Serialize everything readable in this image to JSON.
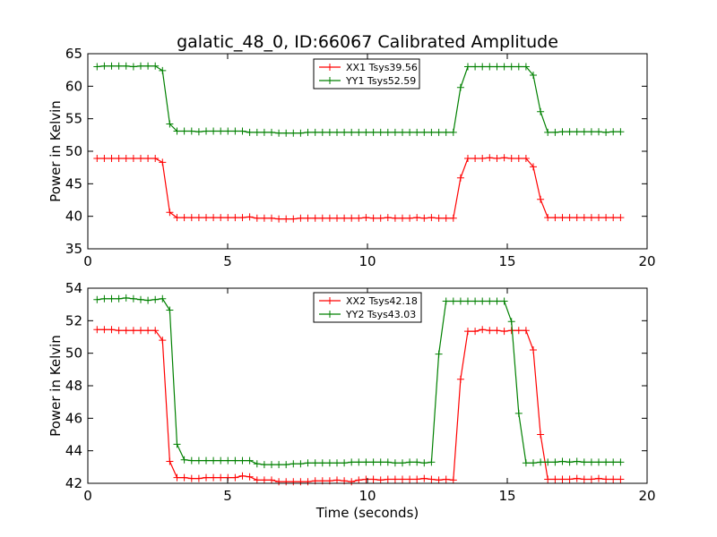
{
  "figure": {
    "title": "galatic_48_0, ID:66067 Calibrated Amplitude"
  },
  "chart_data": [
    {
      "type": "line",
      "title": "galatic_48_0, ID:66067 Calibrated Amplitude",
      "xlabel": "",
      "ylabel": "Power in Kelvin",
      "xlim": [
        0,
        20
      ],
      "ylim": [
        35,
        65
      ],
      "xticks": [
        0,
        5,
        10,
        15,
        20
      ],
      "yticks": [
        35,
        40,
        45,
        50,
        55,
        60,
        65
      ],
      "grid": false,
      "legend_position": "top-center",
      "x": [
        0.33,
        0.59,
        0.85,
        1.11,
        1.37,
        1.63,
        1.89,
        2.15,
        2.41,
        2.67,
        2.93,
        3.19,
        3.45,
        3.71,
        3.97,
        4.23,
        4.49,
        4.75,
        5.01,
        5.27,
        5.53,
        5.79,
        6.05,
        6.31,
        6.57,
        6.83,
        7.09,
        7.35,
        7.61,
        7.87,
        8.13,
        8.39,
        8.65,
        8.91,
        9.17,
        9.43,
        9.69,
        9.95,
        10.21,
        10.47,
        10.73,
        10.99,
        11.25,
        11.51,
        11.77,
        12.03,
        12.29,
        12.55,
        12.81,
        13.07,
        13.33,
        13.59,
        13.85,
        14.11,
        14.37,
        14.63,
        14.89,
        15.15,
        15.41,
        15.67,
        15.93,
        16.19,
        16.45,
        16.71,
        16.97,
        17.23,
        17.49,
        17.75,
        18.01,
        18.27,
        18.53,
        18.79,
        19.05
      ],
      "series": [
        {
          "name": "XX1 Tsys39.56",
          "color": "#ff0000",
          "values": [
            48.9,
            48.9,
            48.9,
            48.9,
            48.9,
            48.9,
            48.9,
            48.9,
            48.9,
            48.3,
            40.6,
            39.8,
            39.8,
            39.8,
            39.8,
            39.8,
            39.8,
            39.8,
            39.8,
            39.8,
            39.8,
            39.9,
            39.7,
            39.7,
            39.7,
            39.6,
            39.6,
            39.6,
            39.7,
            39.7,
            39.7,
            39.7,
            39.7,
            39.7,
            39.7,
            39.7,
            39.7,
            39.8,
            39.7,
            39.7,
            39.8,
            39.7,
            39.7,
            39.7,
            39.8,
            39.7,
            39.8,
            39.7,
            39.7,
            39.7,
            45.9,
            48.9,
            48.9,
            48.9,
            49.0,
            48.9,
            49.0,
            48.9,
            48.9,
            48.9,
            47.6,
            42.6,
            39.8,
            39.8,
            39.8,
            39.8,
            39.8,
            39.8,
            39.8,
            39.8,
            39.8,
            39.8,
            39.8
          ]
        },
        {
          "name": "YY1 Tsys52.59",
          "color": "#008000",
          "values": [
            63.0,
            63.1,
            63.1,
            63.1,
            63.1,
            63.0,
            63.1,
            63.1,
            63.1,
            62.4,
            54.2,
            53.1,
            53.1,
            53.1,
            53.0,
            53.1,
            53.1,
            53.1,
            53.1,
            53.1,
            53.1,
            52.9,
            52.9,
            52.9,
            52.9,
            52.8,
            52.8,
            52.8,
            52.8,
            52.9,
            52.9,
            52.9,
            52.9,
            52.9,
            52.9,
            52.9,
            52.9,
            52.9,
            52.9,
            52.9,
            52.9,
            52.9,
            52.9,
            52.9,
            52.9,
            52.9,
            52.9,
            52.9,
            52.9,
            52.9,
            59.8,
            63.0,
            63.0,
            63.0,
            63.0,
            63.0,
            63.0,
            63.0,
            63.0,
            63.0,
            61.7,
            56.1,
            52.9,
            52.9,
            53.0,
            53.0,
            53.0,
            53.0,
            53.0,
            53.0,
            52.9,
            53.0,
            53.0
          ]
        }
      ]
    },
    {
      "type": "line",
      "title": "",
      "xlabel": "Time (seconds)",
      "ylabel": "Power in Kelvin",
      "xlim": [
        0,
        20
      ],
      "ylim": [
        42,
        54
      ],
      "xticks": [
        0,
        5,
        10,
        15,
        20
      ],
      "yticks": [
        42,
        44,
        46,
        48,
        50,
        52,
        54
      ],
      "grid": false,
      "legend_position": "top-center",
      "x": [
        0.33,
        0.59,
        0.85,
        1.11,
        1.37,
        1.63,
        1.89,
        2.15,
        2.41,
        2.67,
        2.93,
        3.19,
        3.45,
        3.71,
        3.97,
        4.23,
        4.49,
        4.75,
        5.01,
        5.27,
        5.53,
        5.79,
        6.05,
        6.31,
        6.57,
        6.83,
        7.09,
        7.35,
        7.61,
        7.87,
        8.13,
        8.39,
        8.65,
        8.91,
        9.17,
        9.43,
        9.69,
        9.95,
        10.21,
        10.47,
        10.73,
        10.99,
        11.25,
        11.51,
        11.77,
        12.03,
        12.29,
        12.55,
        12.81,
        13.07,
        13.33,
        13.59,
        13.85,
        14.11,
        14.37,
        14.63,
        14.89,
        15.15,
        15.41,
        15.67,
        15.93,
        16.19,
        16.45,
        16.71,
        16.97,
        17.23,
        17.49,
        17.75,
        18.01,
        18.27,
        18.53,
        18.79,
        19.05
      ],
      "series": [
        {
          "name": "XX2 Tsys42.18",
          "color": "#ff0000",
          "values": [
            51.45,
            51.45,
            51.45,
            51.4,
            51.4,
            51.4,
            51.4,
            51.4,
            51.4,
            50.8,
            43.35,
            42.35,
            42.35,
            42.3,
            42.3,
            42.35,
            42.35,
            42.35,
            42.35,
            42.35,
            42.45,
            42.4,
            42.2,
            42.2,
            42.2,
            42.1,
            42.1,
            42.1,
            42.1,
            42.1,
            42.15,
            42.15,
            42.15,
            42.2,
            42.15,
            42.1,
            42.2,
            42.25,
            42.25,
            42.2,
            42.25,
            42.25,
            42.25,
            42.25,
            42.25,
            42.3,
            42.25,
            42.2,
            42.25,
            42.2,
            48.4,
            51.35,
            51.35,
            51.45,
            51.4,
            51.4,
            51.35,
            51.4,
            51.4,
            51.4,
            50.2,
            45.0,
            42.25,
            42.25,
            42.25,
            42.25,
            42.3,
            42.25,
            42.25,
            42.3,
            42.25,
            42.25,
            42.25
          ]
        },
        {
          "name": "YY2 Tsys43.03",
          "color": "#008000",
          "values": [
            53.3,
            53.35,
            53.35,
            53.35,
            53.4,
            53.35,
            53.3,
            53.25,
            53.3,
            53.35,
            52.65,
            44.4,
            43.45,
            43.4,
            43.4,
            43.4,
            43.4,
            43.4,
            43.4,
            43.4,
            43.4,
            43.4,
            43.2,
            43.15,
            43.15,
            43.15,
            43.15,
            43.2,
            43.2,
            43.25,
            43.25,
            43.25,
            43.25,
            43.25,
            43.25,
            43.3,
            43.3,
            43.3,
            43.3,
            43.3,
            43.3,
            43.25,
            43.25,
            43.3,
            43.3,
            43.25,
            43.3,
            49.95,
            53.2,
            53.2,
            53.2,
            53.2,
            53.2,
            53.2,
            53.2,
            53.2,
            53.2,
            51.95,
            46.3,
            43.25,
            43.25,
            43.3,
            43.3,
            43.3,
            43.35,
            43.3,
            43.35,
            43.3,
            43.3,
            43.3,
            43.3,
            43.3,
            43.3
          ]
        }
      ]
    }
  ]
}
